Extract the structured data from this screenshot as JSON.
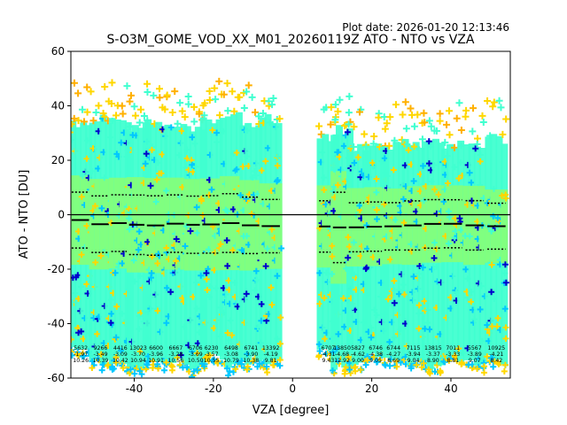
{
  "chart_data": {
    "type": "scatter",
    "plot_date": "Plot date: 2026-01-20 12:13:46",
    "title": "S-O3M_GOME_VOD_XX_M01_20260119Z ATO - NTO vs VZA",
    "xlabel": "VZA [degree]",
    "ylabel": "ATO - NTO [DU]",
    "xlim": [
      -56,
      55
    ],
    "ylim": [
      -60,
      60
    ],
    "xticks": [
      "-40",
      "-20",
      "0",
      "20",
      "40"
    ],
    "xtick_values": [
      -40,
      -20,
      0,
      20,
      40
    ],
    "yticks": [
      "-60",
      "-40",
      "-20",
      "0",
      "20",
      "40",
      "60"
    ],
    "ytick_values": [
      -60,
      -40,
      -20,
      0,
      20,
      40,
      60
    ],
    "zero_line": 0,
    "colors": {
      "density_low": "#0000cc",
      "density_mid_low": "#00c8ff",
      "density_mid": "#40ffd0",
      "density_high": "#80ff80",
      "density_top": "#ffd700",
      "outlier": "#ffb000",
      "mean": "#000000",
      "line": "#000000"
    },
    "bins": [
      {
        "vza": -53.5,
        "count": "5632",
        "mean": -1.97,
        "mean_label": "-1.97",
        "std": 10.26,
        "std_label": "10.26",
        "bottom": -52,
        "top": 35
      },
      {
        "vza": -48.5,
        "count": "9266",
        "mean": -3.49,
        "mean_label": "-3.49",
        "std": 10.39,
        "std_label": "10.39",
        "bottom": -55,
        "top": 37
      },
      {
        "vza": -43.5,
        "count": "4416",
        "mean": -3.09,
        "mean_label": "-3.09",
        "std": 10.42,
        "std_label": "10.42",
        "bottom": -56,
        "top": 36
      },
      {
        "vza": -39.0,
        "count": "13023",
        "mean": -3.7,
        "mean_label": "-3.70",
        "std": 10.94,
        "std_label": "10.94",
        "bottom": -57,
        "top": 34
      },
      {
        "vza": -34.5,
        "count": "6600",
        "mean": -3.96,
        "mean_label": "-3.96",
        "std": 10.91,
        "std_label": "10.91",
        "bottom": -55,
        "top": 36
      },
      {
        "vza": -29.5,
        "count": "6667",
        "mean": -3.28,
        "mean_label": "-3.28",
        "std": 10.56,
        "std_label": "10.56",
        "bottom": -56,
        "top": 34
      },
      {
        "vza": -24.5,
        "count": "6706",
        "mean": -3.69,
        "mean_label": "-3.69",
        "std": 10.5,
        "std_label": "10.50",
        "bottom": -57,
        "top": 34
      },
      {
        "vza": -20.5,
        "count": "6230",
        "mean": -3.57,
        "mean_label": "-3.57",
        "std": 10.55,
        "std_label": "10.55",
        "bottom": -55,
        "top": 36
      },
      {
        "vza": -15.5,
        "count": "6498",
        "mean": -3.08,
        "mean_label": "-3.08",
        "std": 10.79,
        "std_label": "10.79",
        "bottom": -57,
        "top": 38
      },
      {
        "vza": -10.5,
        "count": "6741",
        "mean": -3.9,
        "mean_label": "-3.90",
        "std": 10.38,
        "std_label": "10.38",
        "bottom": -56,
        "top": 35
      },
      {
        "vza": -5.5,
        "count": "13392",
        "mean": -4.19,
        "mean_label": "-4.19",
        "std": 9.81,
        "std_label": "9.81",
        "bottom": -56,
        "top": 37
      },
      {
        "vza": 9.0,
        "count": "6707",
        "mean": -4.31,
        "mean_label": "-4.31",
        "std": 9.43,
        "std_label": "9.43",
        "bottom": -53,
        "top": 30
      },
      {
        "vza": 12.5,
        "count": "13850",
        "mean": -4.68,
        "mean_label": "-4.68",
        "std": 12.92,
        "std_label": "12.92",
        "bottom": -57,
        "top": 33
      },
      {
        "vza": 16.5,
        "count": "5827",
        "mean": -4.62,
        "mean_label": "-4.62",
        "std": 9.0,
        "std_label": "9.00",
        "bottom": -56,
        "top": 27
      },
      {
        "vza": 21.0,
        "count": "6746",
        "mean": -4.38,
        "mean_label": "-4.38",
        "std": 9.05,
        "std_label": "9.05",
        "bottom": -53,
        "top": 28
      },
      {
        "vza": 25.5,
        "count": "6744",
        "mean": -4.27,
        "mean_label": "-4.27",
        "std": 8.69,
        "std_label": "8.69",
        "bottom": -55,
        "top": 27
      },
      {
        "vza": 30.5,
        "count": "7115",
        "mean": -3.94,
        "mean_label": "-3.94",
        "std": 9.04,
        "std_label": "9.04",
        "bottom": -56,
        "top": 28
      },
      {
        "vza": 35.5,
        "count": "13815",
        "mean": -3.37,
        "mean_label": "-3.37",
        "std": 8.9,
        "std_label": "8.90",
        "bottom": -57,
        "top": 30
      },
      {
        "vza": 40.5,
        "count": "7011",
        "mean": -3.33,
        "mean_label": "-3.33",
        "std": 8.81,
        "std_label": "8.81",
        "bottom": -55,
        "top": 28
      },
      {
        "vza": 46.0,
        "count": "5567",
        "mean": -3.89,
        "mean_label": "-3.89",
        "std": 9.07,
        "std_label": "9.07",
        "bottom": -56,
        "top": 28
      },
      {
        "vza": 51.5,
        "count": "10925",
        "mean": -4.21,
        "mean_label": "-4.21",
        "std": 8.42,
        "std_label": "8.42",
        "bottom": -55,
        "top": 30
      }
    ]
  }
}
